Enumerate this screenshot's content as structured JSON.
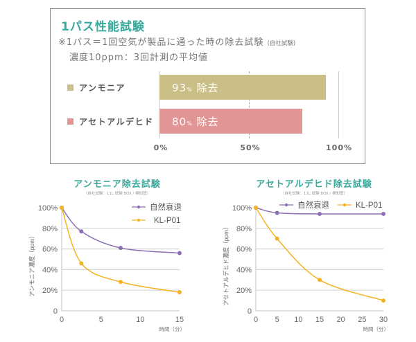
{
  "chart_data": [
    {
      "type": "bar",
      "orientation": "horizontal",
      "title": "1パス性能試験",
      "notes": [
        "※1パス＝1回空気が製品に通った時の除去試験",
        "(自社試験)",
        "濃度10ppm：3回計測の平均値"
      ],
      "categories": [
        "アンモニア",
        "アセトアルデヒド"
      ],
      "values": [
        93,
        80
      ],
      "value_labels": [
        "93",
        "80"
      ],
      "value_label_unit": "%",
      "value_label_suffix": "除去",
      "colors": [
        "#cbbf88",
        "#e19595"
      ],
      "x_ticks": [
        "0%",
        "50%",
        "100%"
      ],
      "xlim": [
        0,
        100
      ],
      "grid": true
    },
    {
      "type": "line",
      "title": "アンモニア除去試験",
      "subtitle": "（自社試験：11L 試験 BOX / 検知管）",
      "xlabel": "時間（分）",
      "ylabel": "アンモニア濃度（ppm）",
      "xlim": [
        0,
        15
      ],
      "ylim": [
        0,
        100
      ],
      "x_ticks": [
        "0",
        "5",
        "10",
        "15"
      ],
      "x_tick_values": [
        0,
        5,
        10,
        15
      ],
      "y_ticks": [
        "0",
        "20%",
        "40%",
        "60%",
        "80%",
        "100%"
      ],
      "y_tick_values": [
        0,
        20,
        40,
        60,
        80,
        100
      ],
      "legend_position": "top-right",
      "grid": true,
      "series": [
        {
          "name": "自然衰退",
          "color": "#8c6fb3",
          "x": [
            0,
            2.5,
            7.5,
            15
          ],
          "values": [
            100,
            77,
            61,
            56
          ]
        },
        {
          "name": "KL-P01",
          "color": "#f5b324",
          "x": [
            0,
            2.5,
            7.5,
            15
          ],
          "values": [
            100,
            46,
            28,
            18
          ]
        }
      ]
    },
    {
      "type": "line",
      "title": "アセトアルデヒド除去試験",
      "subtitle": "（自社試験：11L 試験 BOX / 検知管）",
      "xlabel": "時間（分）",
      "ylabel": "アセトアルデヒド濃度（ppm）",
      "xlim": [
        0,
        30
      ],
      "ylim": [
        0,
        100
      ],
      "x_ticks": [
        "0",
        "5",
        "10",
        "15",
        "20",
        "25",
        "30"
      ],
      "x_tick_values": [
        0,
        5,
        10,
        15,
        20,
        25,
        30
      ],
      "y_ticks": [
        "0",
        "20%",
        "40%",
        "60%",
        "80%",
        "100%"
      ],
      "y_tick_values": [
        0,
        20,
        40,
        60,
        80,
        100
      ],
      "legend_position": "top",
      "grid": true,
      "series": [
        {
          "name": "自然衰退",
          "color": "#8c6fb3",
          "x": [
            0,
            5,
            15,
            30
          ],
          "values": [
            100,
            95,
            94,
            94
          ]
        },
        {
          "name": "KL-P01",
          "color": "#f5b324",
          "x": [
            0,
            5,
            15,
            30
          ],
          "values": [
            100,
            70,
            30,
            10
          ]
        }
      ]
    }
  ]
}
